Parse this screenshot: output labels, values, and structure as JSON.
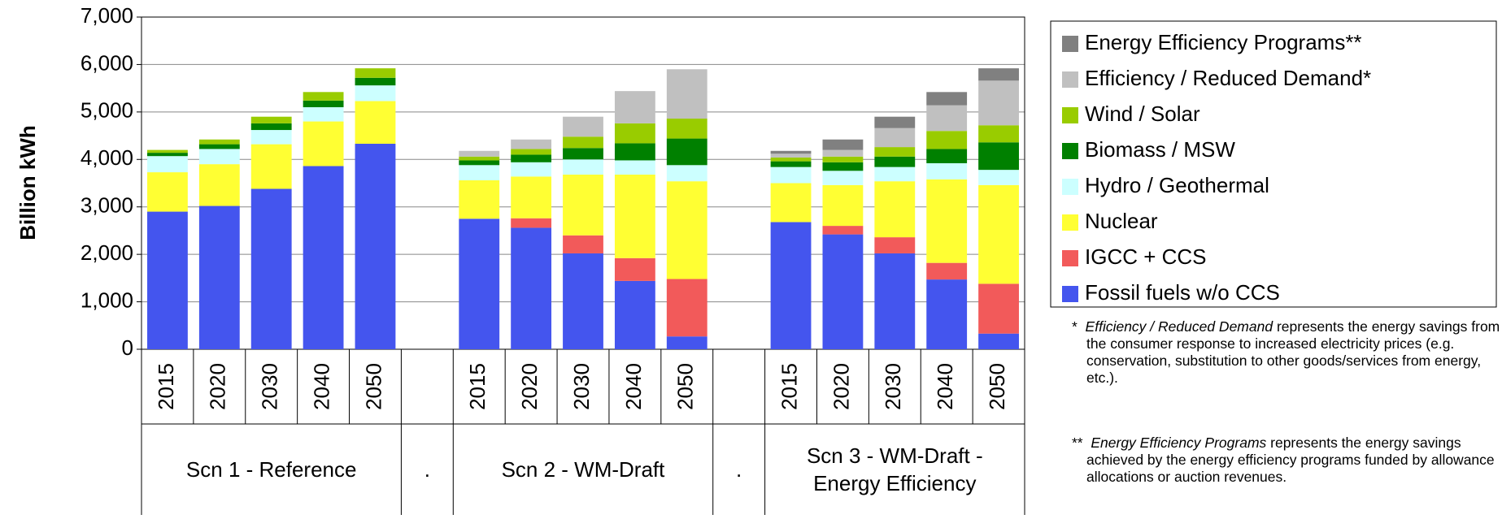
{
  "chart_data": {
    "type": "stacked_bar",
    "ylabel": "Billion kWh",
    "ylim": [
      0,
      7000
    ],
    "yticks": [
      0,
      {
        "value": 1000,
        "label": "1,000"
      },
      {
        "value": 2000,
        "label": "2,000"
      },
      {
        "value": 3000,
        "label": "3,000"
      },
      {
        "value": 4000,
        "label": "4,000"
      },
      {
        "value": 5000,
        "label": "5,000"
      },
      {
        "value": 6000,
        "label": "6,000"
      },
      {
        "value": 7000,
        "label": "7,000"
      }
    ],
    "grid": true,
    "groups": [
      {
        "name": "Scn 1 - Reference",
        "categories": [
          "2015",
          "2020",
          "2030",
          "2040",
          "2050"
        ]
      },
      {
        "name": ".",
        "categories": [
          null
        ]
      },
      {
        "name": "Scn 2 - WM-Draft",
        "categories": [
          "2015",
          "2020",
          "2030",
          "2040",
          "2050"
        ]
      },
      {
        "name": ".",
        "categories": [
          null
        ]
      },
      {
        "name": "Scn 3 - WM-Draft - Energy Efficiency",
        "categories": [
          "2015",
          "2020",
          "2030",
          "2040",
          "2050"
        ]
      }
    ],
    "series": [
      {
        "name": "Fossil fuels w/o CCS",
        "color": "#4455ee",
        "values": [
          2900,
          3020,
          3380,
          3860,
          4330,
          null,
          2750,
          2560,
          2020,
          1440,
          270,
          null,
          2680,
          2420,
          2020,
          1470,
          330
        ]
      },
      {
        "name": "IGCC + CCS",
        "color": "#f25a5a",
        "values": [
          0,
          0,
          0,
          0,
          0,
          null,
          0,
          200,
          380,
          480,
          1210,
          null,
          0,
          180,
          340,
          350,
          1050
        ]
      },
      {
        "name": "Nuclear",
        "color": "#ffff33",
        "values": [
          830,
          880,
          940,
          940,
          900,
          null,
          810,
          880,
          1280,
          1760,
          2060,
          null,
          820,
          860,
          1180,
          1760,
          2080
        ]
      },
      {
        "name": "Hydro / Geothermal",
        "color": "#ccffff",
        "values": [
          340,
          320,
          300,
          300,
          330,
          null,
          320,
          300,
          320,
          300,
          340,
          null,
          340,
          300,
          300,
          340,
          320
        ]
      },
      {
        "name": "Biomass / MSW",
        "color": "#008000",
        "values": [
          70,
          100,
          140,
          140,
          160,
          null,
          100,
          160,
          240,
          360,
          560,
          null,
          120,
          180,
          220,
          300,
          580
        ]
      },
      {
        "name": "Wind / Solar",
        "color": "#99cc00",
        "values": [
          60,
          100,
          140,
          180,
          200,
          null,
          80,
          120,
          240,
          420,
          420,
          null,
          80,
          120,
          200,
          380,
          360
        ]
      },
      {
        "name": "Efficiency / Reduced Demand*",
        "color": "#c0c0c0",
        "values": [
          0,
          0,
          0,
          0,
          0,
          null,
          120,
          200,
          420,
          680,
          1040,
          null,
          80,
          140,
          400,
          540,
          940
        ]
      },
      {
        "name": "Energy Efficiency Programs**",
        "color": "#808080",
        "values": [
          0,
          0,
          0,
          0,
          0,
          null,
          0,
          0,
          0,
          0,
          0,
          null,
          60,
          220,
          240,
          280,
          260
        ]
      }
    ],
    "footnotes": [
      {
        "marker": "*",
        "term": "Efficiency / Reduced Demand",
        "text": " represents the energy savings from the consumer response to increased electricity prices (e.g. conservation, substitution to other goods/services from energy, etc.)."
      },
      {
        "marker": "**",
        "term": "Energy Efficiency Programs",
        "text": " represents the energy savings achieved by the energy efficiency programs funded by allowance allocations or auction revenues."
      }
    ]
  }
}
